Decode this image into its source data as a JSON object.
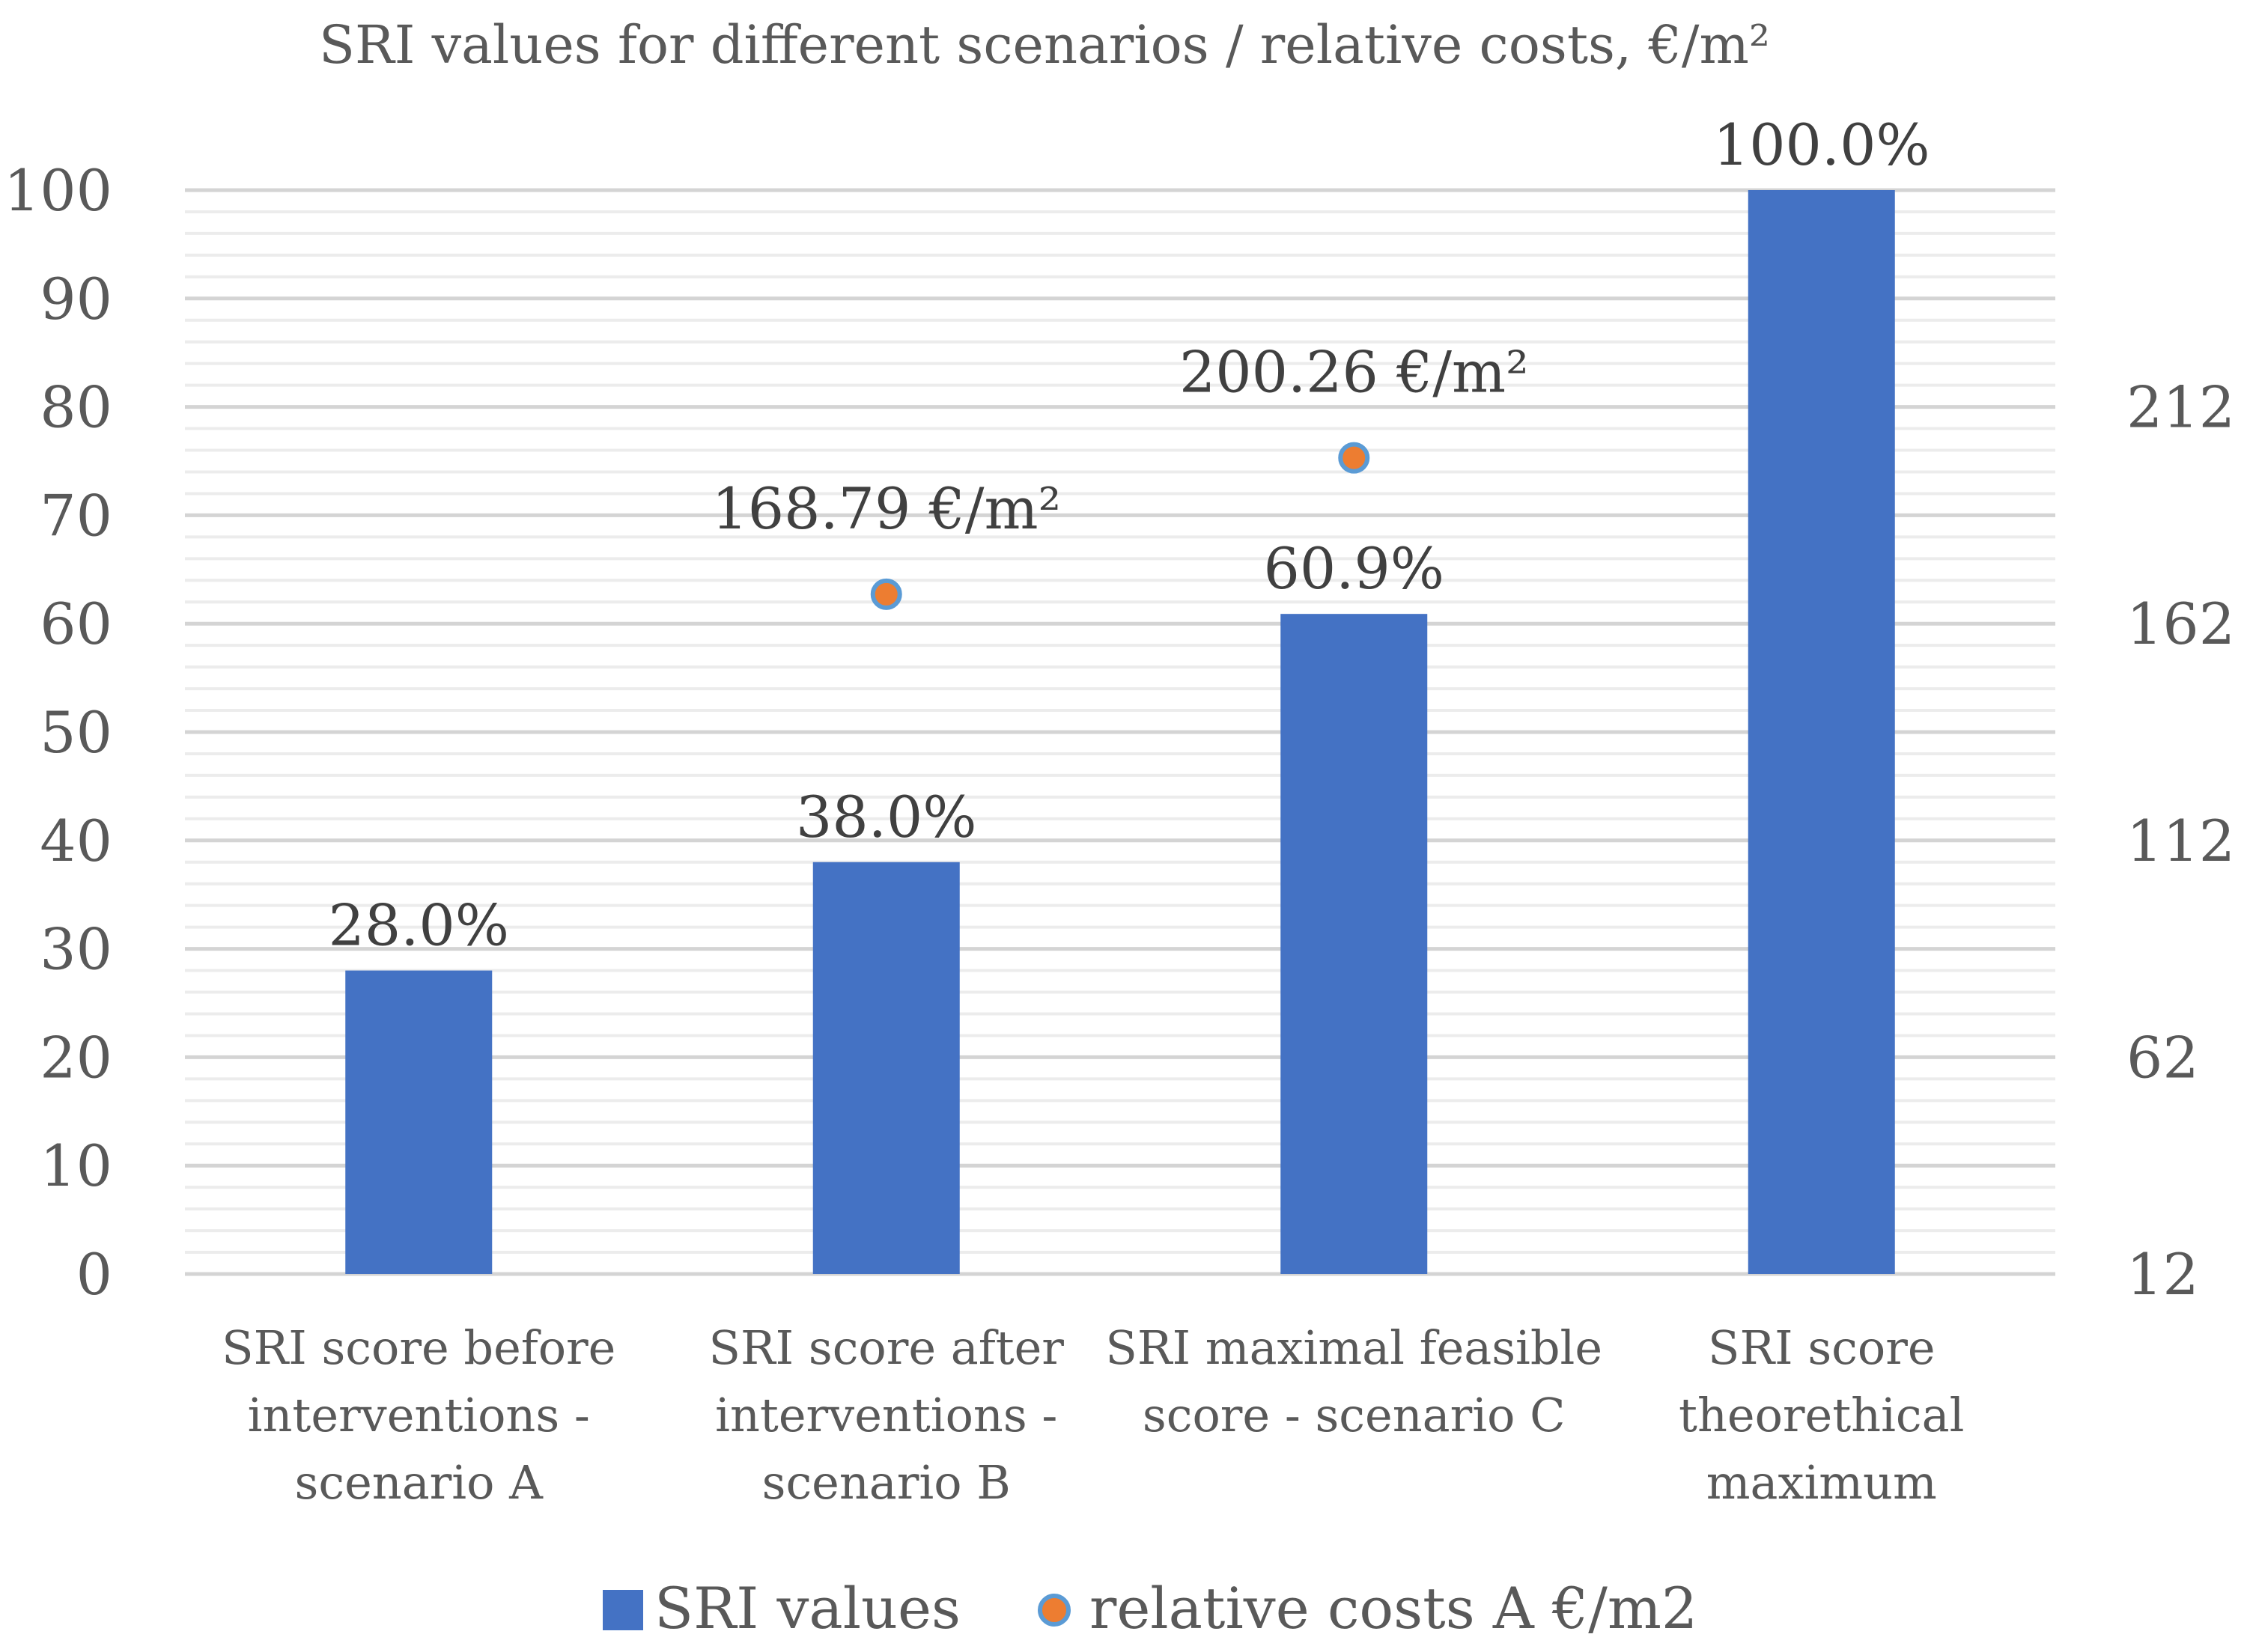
{
  "chart_data": {
    "type": "bar",
    "title": "SRI values for different scenarios / relative costs, €/m²",
    "categories": [
      [
        "SRI score before",
        "interventions -",
        "scenario A"
      ],
      [
        "SRI score after",
        "interventions -",
        "scenario B"
      ],
      [
        "SRI maximal feasible",
        "score  - scenario C"
      ],
      [
        "SRI score",
        "theorethical",
        "maximum"
      ]
    ],
    "series": [
      {
        "name": "SRI values",
        "type": "bar",
        "axis": "left",
        "color": "#4472C4",
        "values": [
          28.0,
          38.0,
          60.9,
          100.0
        ],
        "labels": [
          "28.0%",
          "38.0%",
          "60.9%",
          "100.0%"
        ]
      },
      {
        "name": "relative costs A €/m2",
        "type": "scatter",
        "axis": "right",
        "color": "#ED7D31",
        "edge_color": "#5B9BD5",
        "values": [
          null,
          168.79,
          200.26,
          null
        ],
        "labels": [
          null,
          "168.79 €/m²",
          "200.26 €/m²",
          null
        ]
      }
    ],
    "y_left": {
      "min": 0,
      "max": 100,
      "major_step": 10,
      "minor_step": 2,
      "ticks": [
        "0",
        "10",
        "20",
        "30",
        "40",
        "50",
        "60",
        "70",
        "80",
        "90",
        "100"
      ]
    },
    "y_right": {
      "min": 12,
      "max": 262,
      "ticks": [
        "12",
        "62",
        "112",
        "162",
        "212"
      ]
    },
    "legend_position": "bottom",
    "grid": true
  }
}
